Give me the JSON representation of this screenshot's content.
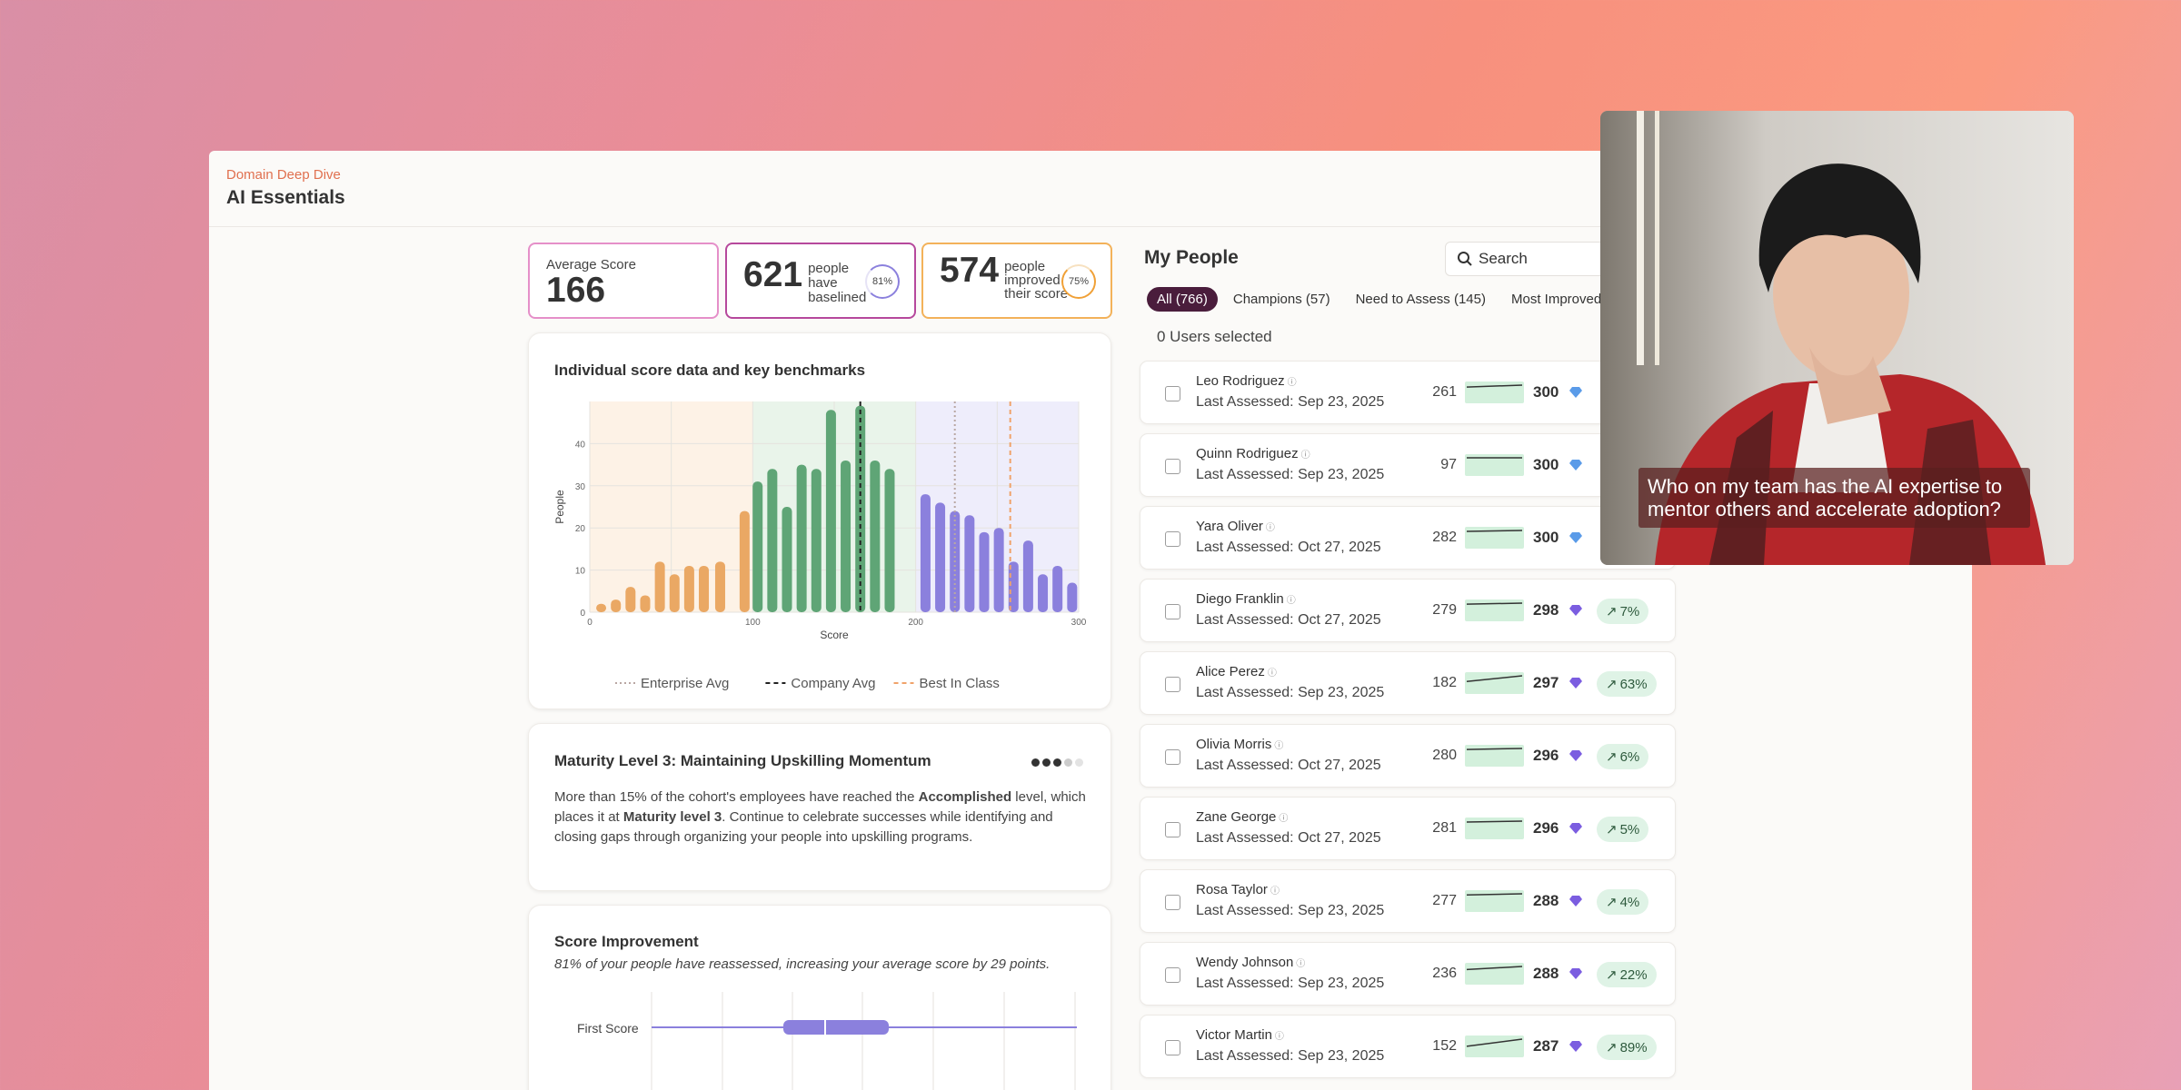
{
  "header": {
    "breadcrumb": "Domain Deep Dive",
    "title": "AI Essentials"
  },
  "stats": {
    "avg_label": "Average Score",
    "avg_value": "166",
    "baselined_value": "621",
    "baselined_label": "people have baselined",
    "baselined_pct": "81%",
    "improved_value": "574",
    "improved_label": "people improved their score",
    "improved_pct": "75%"
  },
  "chart_card": {
    "title": "Individual score data and key benchmarks",
    "chart_data": {
      "type": "bar",
      "xlabel": "Score",
      "ylabel": "People",
      "xlim": [
        0,
        300
      ],
      "ylim": [
        0,
        50
      ],
      "x_ticks": [
        "0",
        "100",
        "200",
        "300"
      ],
      "y_ticks": [
        "0",
        "10",
        "20",
        "30",
        "40"
      ],
      "bins": [
        {
          "x": 7,
          "y": 2,
          "group": "orange"
        },
        {
          "x": 16,
          "y": 3,
          "group": "orange"
        },
        {
          "x": 25,
          "y": 6,
          "group": "orange"
        },
        {
          "x": 34,
          "y": 4,
          "group": "orange"
        },
        {
          "x": 43,
          "y": 12,
          "group": "orange"
        },
        {
          "x": 52,
          "y": 9,
          "group": "orange"
        },
        {
          "x": 61,
          "y": 11,
          "group": "orange"
        },
        {
          "x": 70,
          "y": 11,
          "group": "orange"
        },
        {
          "x": 80,
          "y": 12,
          "group": "orange"
        },
        {
          "x": 95,
          "y": 24,
          "group": "orange"
        },
        {
          "x": 103,
          "y": 31,
          "group": "green"
        },
        {
          "x": 112,
          "y": 34,
          "group": "green"
        },
        {
          "x": 121,
          "y": 25,
          "group": "green"
        },
        {
          "x": 130,
          "y": 35,
          "group": "green"
        },
        {
          "x": 139,
          "y": 34,
          "group": "green"
        },
        {
          "x": 148,
          "y": 48,
          "group": "green"
        },
        {
          "x": 157,
          "y": 36,
          "group": "green"
        },
        {
          "x": 166,
          "y": 49,
          "group": "green"
        },
        {
          "x": 175,
          "y": 36,
          "group": "green"
        },
        {
          "x": 184,
          "y": 34,
          "group": "green"
        },
        {
          "x": 206,
          "y": 28,
          "group": "purple"
        },
        {
          "x": 215,
          "y": 26,
          "group": "purple"
        },
        {
          "x": 224,
          "y": 24,
          "group": "purple"
        },
        {
          "x": 233,
          "y": 23,
          "group": "purple"
        },
        {
          "x": 242,
          "y": 19,
          "group": "purple"
        },
        {
          "x": 251,
          "y": 20,
          "group": "purple"
        },
        {
          "x": 260,
          "y": 12,
          "group": "purple"
        },
        {
          "x": 269,
          "y": 17,
          "group": "purple"
        },
        {
          "x": 278,
          "y": 9,
          "group": "purple"
        },
        {
          "x": 287,
          "y": 11,
          "group": "purple"
        },
        {
          "x": 296,
          "y": 7,
          "group": "purple"
        }
      ],
      "regions": [
        {
          "from": 0,
          "to": 100,
          "color": "#fdf2e6"
        },
        {
          "from": 100,
          "to": 200,
          "color": "#e9f4ea"
        },
        {
          "from": 200,
          "to": 300,
          "color": "#eeedfb"
        }
      ],
      "benchmarks": [
        {
          "name": "Enterprise Avg",
          "x": 224,
          "color": "#b9a7a3",
          "style": "dotted"
        },
        {
          "name": "Company Avg",
          "x": 166,
          "color": "#222222",
          "style": "dashed"
        },
        {
          "name": "Best In Class",
          "x": 258,
          "color": "#f0a36b",
          "style": "dashed"
        }
      ],
      "colors": {
        "orange": "#eaa864",
        "green": "#5fa576",
        "purple": "#8b80dd"
      }
    }
  },
  "maturity": {
    "title": "Maturity Level 3: Maintaining Upskilling Momentum",
    "t1": "More than 15% of the cohort's employees have reached the ",
    "b1": "Accomplished",
    "t2": " level, which places it at ",
    "b2": "Maturity level 3",
    "t3": ". Continue to celebrate successes while identifying and closing gaps through organizing your people into upskilling programs."
  },
  "improvement": {
    "title": "Score Improvement",
    "subtitle": "81% of your people have reassessed, increasing your average score by 29 points.",
    "row_label": "First Score"
  },
  "people": {
    "title": "My People",
    "search_placeholder": "Search",
    "tabs": [
      "All (766)",
      "Champions (57)",
      "Need to Assess (145)",
      "Most Improved"
    ],
    "selected": "0 Users selected",
    "rows": [
      {
        "name": "Leo Rodriguez",
        "date": "Last Assessed: Sep 23, 2025",
        "first": "261",
        "latest": "300",
        "gem": "blue",
        "change": ""
      },
      {
        "name": "Quinn Rodriguez",
        "date": "Last Assessed: Sep 23, 2025",
        "first": "97",
        "latest": "300",
        "gem": "blue",
        "change": ""
      },
      {
        "name": "Yara Oliver",
        "date": "Last Assessed: Oct 27, 2025",
        "first": "282",
        "latest": "300",
        "gem": "blue",
        "change": ""
      },
      {
        "name": "Diego Franklin",
        "date": "Last Assessed: Oct 27, 2025",
        "first": "279",
        "latest": "298",
        "gem": "purple",
        "change": "7%"
      },
      {
        "name": "Alice Perez",
        "date": "Last Assessed: Sep 23, 2025",
        "first": "182",
        "latest": "297",
        "gem": "purple",
        "change": "63%"
      },
      {
        "name": "Olivia Morris",
        "date": "Last Assessed: Oct 27, 2025",
        "first": "280",
        "latest": "296",
        "gem": "purple",
        "change": "6%"
      },
      {
        "name": "Zane George",
        "date": "Last Assessed: Oct 27, 2025",
        "first": "281",
        "latest": "296",
        "gem": "purple",
        "change": "5%"
      },
      {
        "name": "Rosa Taylor",
        "date": "Last Assessed: Sep 23, 2025",
        "first": "277",
        "latest": "288",
        "gem": "purple",
        "change": "4%"
      },
      {
        "name": "Wendy Johnson",
        "date": "Last Assessed: Sep 23, 2025",
        "first": "236",
        "latest": "288",
        "gem": "purple",
        "change": "22%"
      },
      {
        "name": "Victor Martin",
        "date": "Last Assessed: Sep 23, 2025",
        "first": "152",
        "latest": "287",
        "gem": "purple",
        "change": "89%"
      }
    ]
  },
  "video": {
    "caption": "Who on my team has the AI expertise to mentor others and accelerate adoption?"
  }
}
